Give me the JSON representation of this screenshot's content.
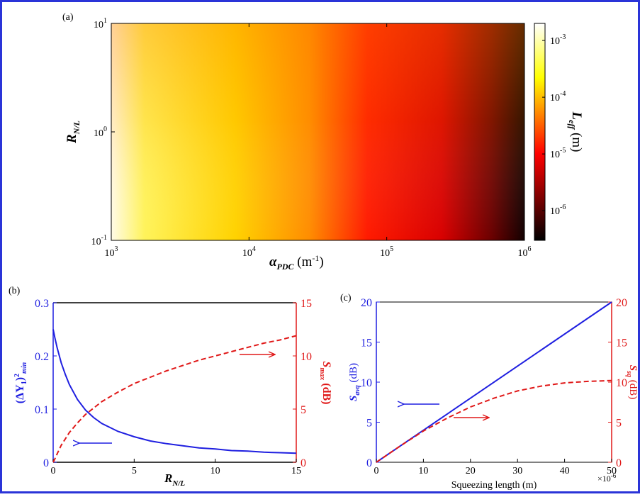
{
  "colors": {
    "frame": "#2a34d8",
    "blue": "#1f1fe0",
    "red": "#e01818",
    "black": "#000000"
  },
  "chart_data": [
    {
      "panel": "(a)",
      "type": "heatmap",
      "xlabel_main": "α",
      "xlabel_sub": "PDC",
      "xlabel_unit_pre": " (m",
      "xlabel_unit_sup": "-1",
      "xlabel_unit_post": ")",
      "ylabel_main": "R",
      "ylabel_sub": "N/L",
      "colorbar_label_main": "L",
      "colorbar_label_sub": "eff",
      "colorbar_label_unit": " (m)",
      "x_scale": "log",
      "y_scale": "log",
      "xlim": [
        1000,
        1000000
      ],
      "ylim": [
        0.1,
        10
      ],
      "x_ticks": [
        {
          "base": "10",
          "exp": "3",
          "value": 1000
        },
        {
          "base": "10",
          "exp": "4",
          "value": 10000
        },
        {
          "base": "10",
          "exp": "5",
          "value": 100000
        },
        {
          "base": "10",
          "exp": "6",
          "value": 1000000
        }
      ],
      "y_ticks": [
        {
          "base": "10",
          "exp": "-1",
          "value": 0.1
        },
        {
          "base": "10",
          "exp": "0",
          "value": 1
        },
        {
          "base": "10",
          "exp": "1",
          "value": 10
        }
      ],
      "colorbar_scale": "log",
      "colorbar_range": [
        3e-07,
        0.002
      ],
      "colorbar_ticks": [
        {
          "base": "10",
          "exp": "-6",
          "value": 1e-06
        },
        {
          "base": "10",
          "exp": "-5",
          "value": 1e-05
        },
        {
          "base": "10",
          "exp": "-4",
          "value": 0.0001
        },
        {
          "base": "10",
          "exp": "-3",
          "value": 0.001
        }
      ],
      "colormap": [
        "#000000",
        "#ff0000",
        "#ffff00",
        "#ffffff"
      ]
    },
    {
      "panel": "(b)",
      "type": "line",
      "xlabel_main": "R",
      "xlabel_sub": "N/L",
      "ylabel_left_main": "(ΔY",
      "ylabel_left_sub1": "1",
      "ylabel_left_mid": ")",
      "ylabel_left_sup": "2",
      "ylabel_left_sub2": "min",
      "ylabel_right_main": "S",
      "ylabel_right_sub": "max",
      "ylabel_right_unit": " (dB)",
      "xlim": [
        0,
        15
      ],
      "ylim_left": [
        0,
        0.3
      ],
      "ylim_right": [
        0,
        15
      ],
      "x_ticks": [
        "0",
        "5",
        "10",
        "15"
      ],
      "y_ticks_left": [
        "0",
        "0.1",
        "0.2",
        "0.3"
      ],
      "y_ticks_right": [
        "0",
        "5",
        "10",
        "15"
      ],
      "series": [
        {
          "axis": "left",
          "style": "solid",
          "color": "#1f1fe0",
          "x": [
            0,
            0.1,
            0.25,
            0.5,
            0.75,
            1,
            1.5,
            2,
            2.5,
            3,
            4,
            5,
            6,
            7,
            8,
            9,
            10,
            11,
            12,
            13,
            14,
            15
          ],
          "y": [
            0.25,
            0.235,
            0.215,
            0.187,
            0.165,
            0.146,
            0.118,
            0.098,
            0.084,
            0.073,
            0.058,
            0.048,
            0.04,
            0.035,
            0.031,
            0.027,
            0.025,
            0.022,
            0.021,
            0.019,
            0.018,
            0.017
          ]
        },
        {
          "axis": "right",
          "style": "dashed",
          "color": "#e01818",
          "x": [
            0,
            0.1,
            0.25,
            0.5,
            0.75,
            1,
            1.5,
            2,
            2.5,
            3,
            4,
            5,
            6,
            7,
            8,
            9,
            10,
            11,
            12,
            13,
            14,
            15
          ],
          "y": [
            0,
            0.3,
            0.8,
            1.6,
            2.2,
            2.8,
            3.7,
            4.5,
            5.1,
            5.7,
            6.6,
            7.4,
            8.0,
            8.6,
            9.1,
            9.6,
            10.0,
            10.4,
            10.8,
            11.2,
            11.5,
            11.9
          ]
        }
      ]
    },
    {
      "panel": "(c)",
      "type": "line",
      "xlabel": "Squeezing length (m)",
      "x_multiplier_base": "×10",
      "x_multiplier_exp": "-6",
      "ylabel_left_main": "S",
      "ylabel_left_sub": "avq",
      "ylabel_left_unit": " (dB)",
      "ylabel_right_main": "S",
      "ylabel_right_sub": "sq",
      "ylabel_right_unit": " (dB)",
      "xlim": [
        0,
        50
      ],
      "ylim_left": [
        0,
        20
      ],
      "ylim_right": [
        0,
        20
      ],
      "x_ticks": [
        "0",
        "10",
        "20",
        "30",
        "40",
        "50"
      ],
      "y_ticks_left": [
        "0",
        "5",
        "10",
        "15",
        "20"
      ],
      "y_ticks_right": [
        "0",
        "5",
        "10",
        "15",
        "20"
      ],
      "series": [
        {
          "axis": "left",
          "style": "solid",
          "color": "#1f1fe0",
          "x": [
            0,
            50
          ],
          "y": [
            0,
            20
          ]
        },
        {
          "axis": "right",
          "style": "dashed",
          "color": "#e01818",
          "x": [
            0,
            5,
            10,
            15,
            20,
            25,
            30,
            35,
            40,
            45,
            50
          ],
          "y": [
            0,
            2.0,
            3.9,
            5.5,
            6.9,
            8.0,
            8.9,
            9.5,
            9.9,
            10.1,
            10.2
          ]
        }
      ]
    }
  ]
}
